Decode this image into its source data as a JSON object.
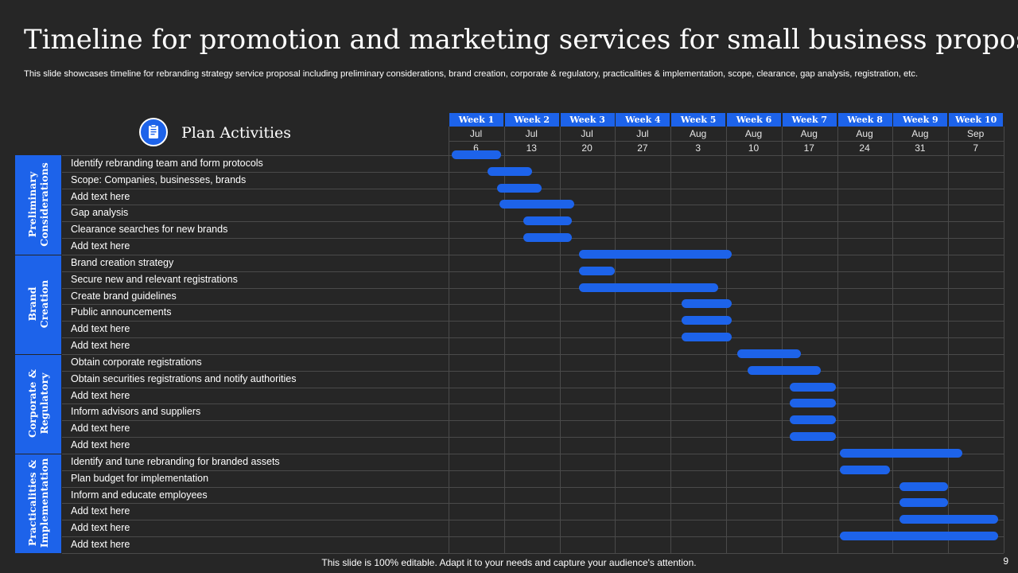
{
  "title": "Timeline for promotion and marketing services for small business proposal",
  "subtitle": "This slide showcases timeline for rebranding strategy service proposal including preliminary considerations, brand creation, corporate & regulatory, practicalities & implementation, scope, clearance, gap analysis, registration, etc.",
  "plan_title": "Plan Activities",
  "plan_icon": "clipboard-icon",
  "weeks": [
    {
      "label": "Week 1",
      "month": "Jul",
      "day": "6"
    },
    {
      "label": "Week 2",
      "month": "Jul",
      "day": "13"
    },
    {
      "label": "Week 3",
      "month": "Jul",
      "day": "20"
    },
    {
      "label": "Week 4",
      "month": "Jul",
      "day": "27"
    },
    {
      "label": "Week 5",
      "month": "Aug",
      "day": "3"
    },
    {
      "label": "Week 6",
      "month": "Aug",
      "day": "10"
    },
    {
      "label": "Week 7",
      "month": "Aug",
      "day": "17"
    },
    {
      "label": "Week 8",
      "month": "Aug",
      "day": "24"
    },
    {
      "label": "Week 9",
      "month": "Aug",
      "day": "31"
    },
    {
      "label": "Week 10",
      "month": "Sep",
      "day": "7"
    }
  ],
  "categories": [
    {
      "line1": "Preliminary",
      "line2": "Considerations",
      "first_row": 0,
      "last_row": 5
    },
    {
      "line1": "Brand",
      "line2": "Creation",
      "first_row": 6,
      "last_row": 11
    },
    {
      "line1": "Corporate &",
      "line2": "Regulatory",
      "first_row": 12,
      "last_row": 17
    },
    {
      "line1": "Practicalities &",
      "line2": "Implementation",
      "first_row": 18,
      "last_row": 23
    }
  ],
  "tasks": [
    {
      "label": "Identify  rebranding  team and form protocols",
      "start_week": 0.05,
      "end_week": 0.95
    },
    {
      "label": "Scope: Companies,  businesses,  brands",
      "start_week": 0.7,
      "end_week": 1.5
    },
    {
      "label": "Add text here",
      "start_week": 0.88,
      "end_week": 1.68
    },
    {
      "label": "Gap analysis",
      "start_week": 0.92,
      "end_week": 2.27
    },
    {
      "label": "Clearance  searches for new brands",
      "start_week": 1.35,
      "end_week": 2.22
    },
    {
      "label": "Add text here",
      "start_week": 1.35,
      "end_week": 2.22
    },
    {
      "label": "Brand creation strategy",
      "start_week": 2.35,
      "end_week": 5.1
    },
    {
      "label": "Secure new and relevant  registrations",
      "start_week": 2.35,
      "end_week": 3.0
    },
    {
      "label": "Create brand guidelines",
      "start_week": 2.35,
      "end_week": 4.85
    },
    {
      "label": "Public announcements",
      "start_week": 4.2,
      "end_week": 5.1
    },
    {
      "label": "Add text here",
      "start_week": 4.2,
      "end_week": 5.1
    },
    {
      "label": "Add text here",
      "start_week": 4.2,
      "end_week": 5.1
    },
    {
      "label": "Obtain  corporate registrations",
      "start_week": 5.2,
      "end_week": 6.35
    },
    {
      "label": "Obtain securities registrations and notify authorities",
      "start_week": 5.38,
      "end_week": 6.7
    },
    {
      "label": "Add text here",
      "start_week": 6.15,
      "end_week": 6.98
    },
    {
      "label": "Inform  advisors and suppliers",
      "start_week": 6.15,
      "end_week": 6.98
    },
    {
      "label": "Add text here",
      "start_week": 6.15,
      "end_week": 6.98
    },
    {
      "label": "Add text here",
      "start_week": 6.15,
      "end_week": 6.98
    },
    {
      "label": "Identify  and  tune rebranding  for branded  assets",
      "start_week": 7.05,
      "end_week": 9.25
    },
    {
      "label": "Plan budget for implementation",
      "start_week": 7.05,
      "end_week": 7.95
    },
    {
      "label": "Inform  and educate employees",
      "start_week": 8.12,
      "end_week": 9.0
    },
    {
      "label": "Add text here",
      "start_week": 8.12,
      "end_week": 9.0
    },
    {
      "label": "Add text here",
      "start_week": 8.12,
      "end_week": 9.9
    },
    {
      "label": "Add text here",
      "start_week": 7.05,
      "end_week": 9.9
    }
  ],
  "footer": "This slide is 100% editable. Adapt it to your needs and capture your audience's attention.",
  "page_number": "9",
  "colors": {
    "accent": "#1d63ea",
    "background": "#262626",
    "grid": "#4a4a4a"
  }
}
